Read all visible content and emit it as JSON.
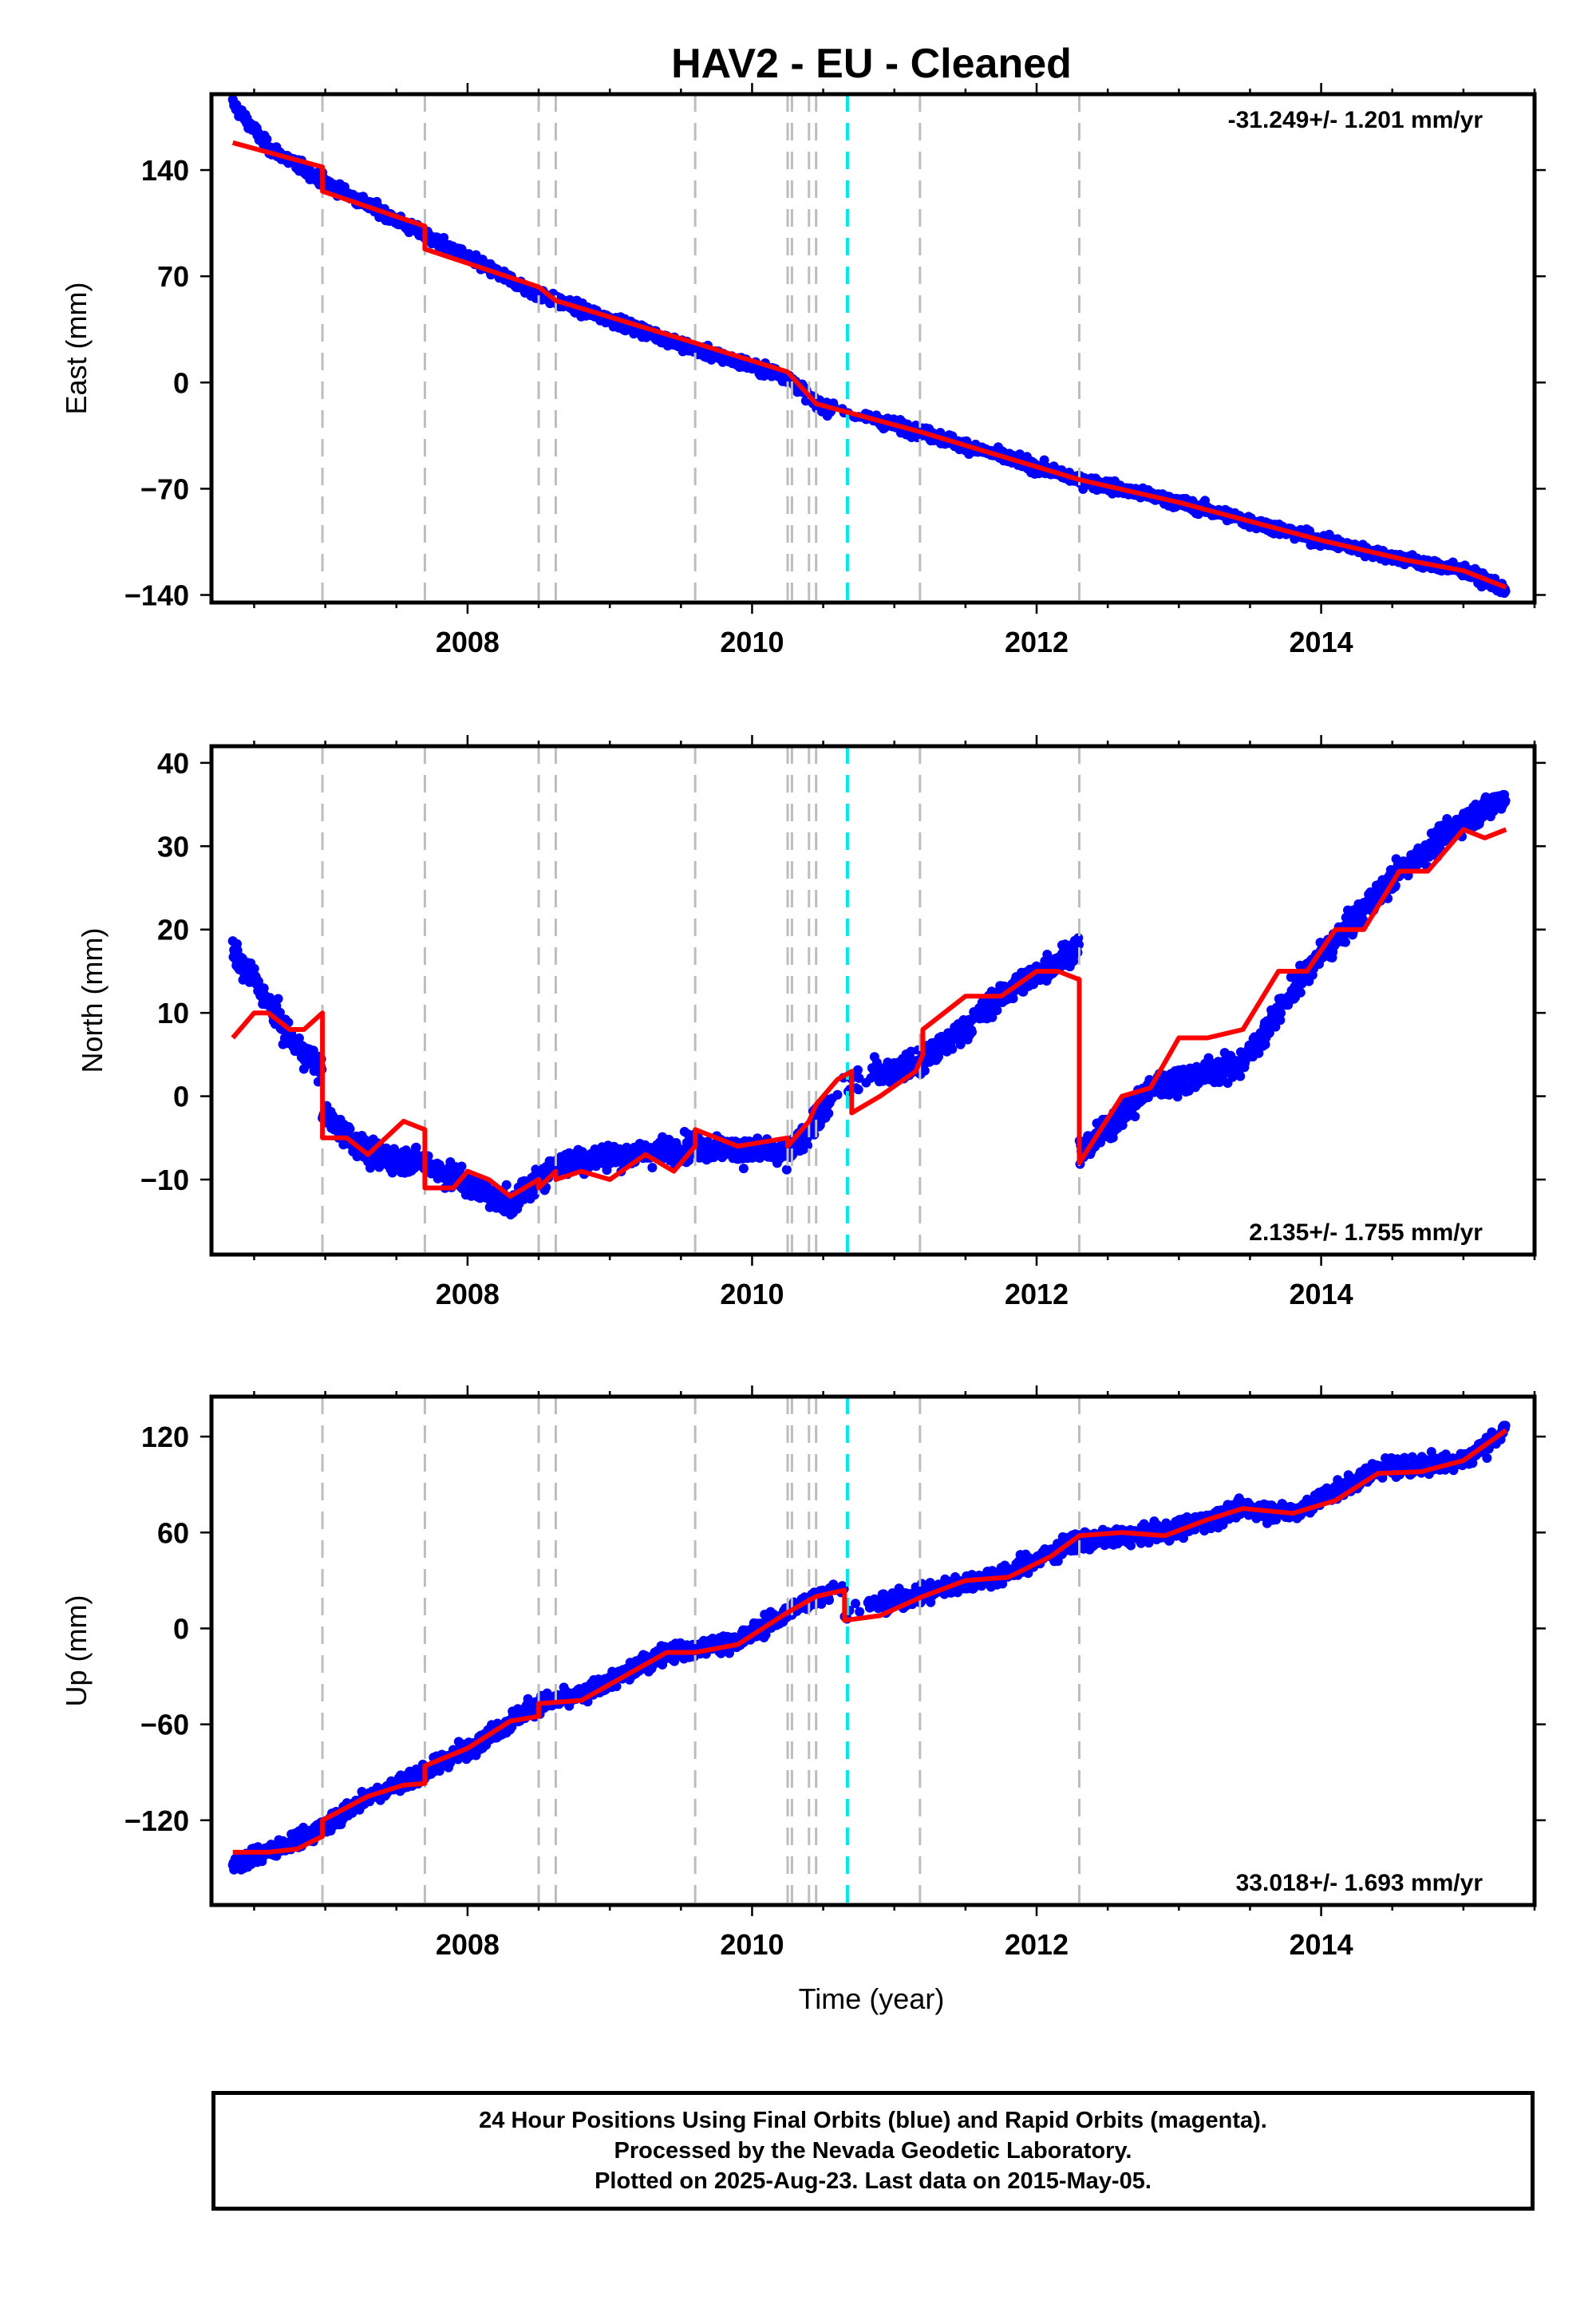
{
  "figure": {
    "title": "HAV2  - EU - Cleaned",
    "xlabel": "Time (year)"
  },
  "colors": {
    "data_points": "#0000ff",
    "model_line": "#ff0000",
    "equipment_change": "#bdbdbd",
    "earthquake_marker": "#00e5ee",
    "frame": "#000000"
  },
  "chart_data": [
    {
      "type": "scatter",
      "component": "East",
      "ylabel": "East (mm)",
      "yticks": [
        140,
        70,
        0,
        -70,
        -140
      ],
      "ytick_labels": [
        "140",
        "70",
        "0",
        "−70",
        "−140"
      ],
      "xticks": [
        2008,
        2010,
        2012,
        2014
      ],
      "xtick_labels": [
        "2008",
        "2010",
        "2012",
        "2014"
      ],
      "xlim": [
        2006.2,
        2015.5
      ],
      "ylim": [
        -145,
        190
      ],
      "rate_label": "-31.249+/- 1.201 mm/yr",
      "rate_position": "top-right",
      "grid": false,
      "series": [
        {
          "kind": "model",
          "x": [
            2006.35,
            2006.98,
            2006.98,
            2007.7,
            2007.7,
            2008.5,
            2008.62,
            2009.6,
            2010.25,
            2010.45,
            2011.2,
            2012.3,
            2013.0,
            2014.0,
            2014.6,
            2015.0,
            2015.3
          ],
          "y": [
            158,
            142,
            126,
            103,
            88,
            63,
            54,
            26,
            7,
            -14,
            -33,
            -64,
            -79,
            -104,
            -117,
            -124,
            -135
          ]
        },
        {
          "kind": "observations",
          "noise": 4,
          "x": [
            2006.35,
            2006.6,
            2007.0,
            2007.7,
            2008.5,
            2009.6,
            2010.25,
            2010.45,
            2011.2,
            2012.3,
            2013.0,
            2014.0,
            2014.6,
            2015.0,
            2015.3
          ],
          "y": [
            184,
            155,
            132,
            97,
            58,
            22,
            4,
            -14,
            -33,
            -64,
            -79,
            -104,
            -117,
            -124,
            -137
          ]
        }
      ]
    },
    {
      "type": "scatter",
      "component": "North",
      "ylabel": "North (mm)",
      "yticks": [
        40,
        30,
        20,
        10,
        0,
        -10
      ],
      "ytick_labels": [
        "40",
        "30",
        "20",
        "10",
        "0",
        "−10"
      ],
      "xticks": [
        2008,
        2010,
        2012,
        2014
      ],
      "xtick_labels": [
        "2008",
        "2010",
        "2012",
        "2014"
      ],
      "xlim": [
        2006.2,
        2015.5
      ],
      "ylim": [
        -19,
        42
      ],
      "rate_label": "2.135+/- 1.755 mm/yr",
      "rate_position": "bottom-right",
      "grid": false,
      "series": [
        {
          "kind": "model",
          "x": [
            2006.35,
            2006.5,
            2006.6,
            2006.75,
            2006.85,
            2006.98,
            2006.98,
            2007.15,
            2007.3,
            2007.55,
            2007.7,
            2007.7,
            2007.9,
            2008.0,
            2008.15,
            2008.3,
            2008.5,
            2008.5,
            2008.62,
            2008.62,
            2008.8,
            2009.0,
            2009.25,
            2009.45,
            2009.6,
            2009.6,
            2009.9,
            2010.25,
            2010.25,
            2010.4,
            2010.45,
            2010.6,
            2010.7,
            2010.7,
            2010.9,
            2011.15,
            2011.2,
            2011.2,
            2011.5,
            2011.75,
            2012.0,
            2012.15,
            2012.3,
            2012.3,
            2012.45,
            2012.6,
            2012.8,
            2013.0,
            2013.2,
            2013.45,
            2013.7,
            2013.9,
            2014.1,
            2014.3,
            2014.55,
            2014.75,
            2015.0,
            2015.15,
            2015.3
          ],
          "y": [
            7,
            10,
            10,
            8,
            8,
            10,
            -5,
            -5,
            -7,
            -3,
            -4,
            -11,
            -11,
            -9,
            -10,
            -12,
            -10,
            -11,
            -9,
            -10,
            -9,
            -10,
            -7,
            -9,
            -6,
            -4,
            -6,
            -5,
            -6,
            -3,
            -1,
            2,
            3,
            -2,
            0,
            3,
            5,
            8,
            12,
            12,
            15,
            15,
            14,
            -8,
            -4,
            0,
            1,
            7,
            7,
            8,
            15,
            15,
            20,
            20,
            27,
            27,
            32,
            31,
            32
          ]
        },
        {
          "kind": "observations",
          "noise": 1.6,
          "x": [
            2006.35,
            2006.5,
            2006.75,
            2006.98,
            2006.98,
            2007.3,
            2007.7,
            2008.3,
            2008.62,
            2009.6,
            2010.25,
            2010.45,
            2010.7,
            2011.2,
            2011.75,
            2012.3,
            2012.3,
            2012.8,
            2013.45,
            2013.9,
            2014.55,
            2015.0,
            2015.3
          ],
          "y": [
            17,
            14,
            7,
            3,
            -2,
            -7,
            -8,
            -13,
            -8,
            -6,
            -7,
            -3,
            2,
            4,
            12,
            18,
            -7,
            1,
            4,
            15,
            27,
            33,
            36
          ]
        }
      ]
    },
    {
      "type": "scatter",
      "component": "Up",
      "ylabel": "Up (mm)",
      "yticks": [
        120,
        60,
        0,
        -60,
        -120
      ],
      "ytick_labels": [
        "120",
        "60",
        "0",
        "−60",
        "−120"
      ],
      "xticks": [
        2008,
        2010,
        2012,
        2014
      ],
      "xtick_labels": [
        "2008",
        "2010",
        "2012",
        "2014"
      ],
      "xlim": [
        2006.2,
        2015.5
      ],
      "ylim": [
        -173,
        145
      ],
      "rate_label": "33.018+/- 1.693 mm/yr",
      "rate_position": "bottom-right",
      "grid": false,
      "series": [
        {
          "kind": "model",
          "x": [
            2006.35,
            2006.6,
            2006.8,
            2006.98,
            2006.98,
            2007.3,
            2007.55,
            2007.7,
            2007.7,
            2008.0,
            2008.3,
            2008.5,
            2008.5,
            2008.8,
            2009.1,
            2009.4,
            2009.6,
            2009.9,
            2010.25,
            2010.45,
            2010.65,
            2010.65,
            2010.9,
            2011.2,
            2011.5,
            2011.8,
            2012.1,
            2012.3,
            2012.6,
            2012.9,
            2013.2,
            2013.45,
            2013.8,
            2014.1,
            2014.4,
            2014.7,
            2015.0,
            2015.3
          ],
          "y": [
            -140,
            -140,
            -138,
            -130,
            -120,
            -105,
            -98,
            -97,
            -86,
            -75,
            -58,
            -55,
            -47,
            -45,
            -30,
            -15,
            -15,
            -10,
            10,
            20,
            24,
            5,
            8,
            20,
            30,
            32,
            45,
            58,
            60,
            58,
            68,
            75,
            72,
            80,
            97,
            98,
            105,
            124
          ]
        },
        {
          "kind": "observations",
          "noise": 6,
          "x": [
            2006.35,
            2006.6,
            2006.98,
            2007.3,
            2007.7,
            2008.0,
            2008.5,
            2008.8,
            2009.4,
            2009.9,
            2010.45,
            2010.65,
            2010.65,
            2011.2,
            2011.8,
            2012.3,
            2012.9,
            2013.45,
            2013.8,
            2014.4,
            2015.0,
            2015.3
          ],
          "y": [
            -148,
            -140,
            -125,
            -105,
            -90,
            -75,
            -47,
            -42,
            -15,
            -8,
            20,
            25,
            10,
            22,
            35,
            55,
            60,
            75,
            72,
            100,
            105,
            124
          ]
        }
      ]
    }
  ],
  "markers": {
    "equipment_change_years": [
      2006.98,
      2007.7,
      2008.5,
      2008.62,
      2009.6,
      2010.25,
      2010.28,
      2010.4,
      2010.45,
      2011.18,
      2012.3
    ],
    "earthquake_years": [
      2010.67
    ]
  },
  "footer": {
    "line1": "24 Hour Positions Using Final Orbits (blue) and Rapid Orbits (magenta).",
    "line2": "Processed by the Nevada Geodetic Laboratory.",
    "line3": "Plotted on 2025-Aug-23. Last data on 2015-May-05."
  }
}
